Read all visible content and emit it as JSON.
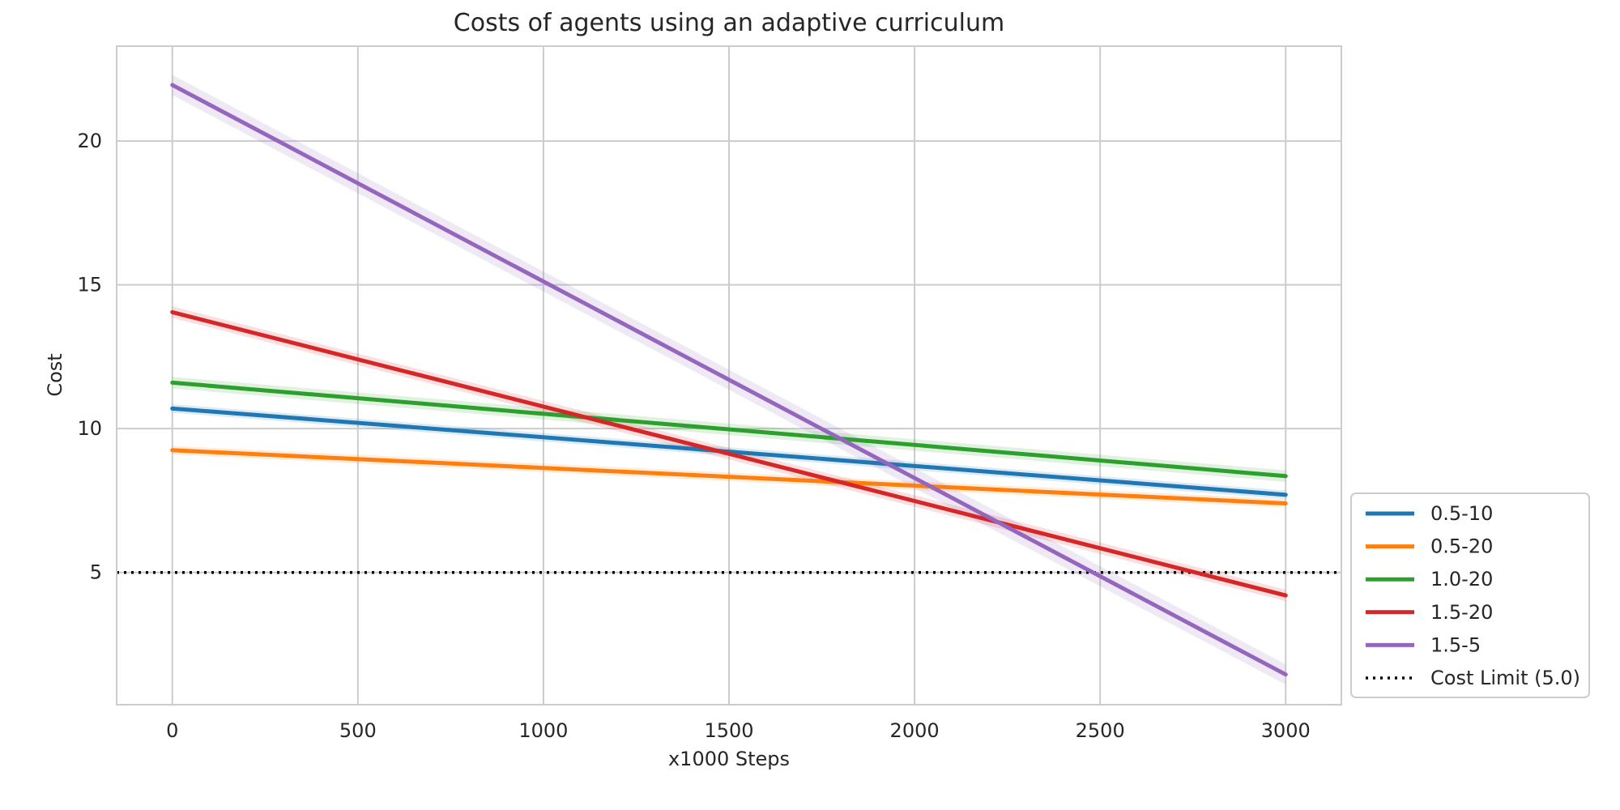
{
  "chart_data": {
    "type": "line",
    "title": "Costs of agents using an adaptive curriculum",
    "xlabel": "x1000 Steps",
    "ylabel": "Cost",
    "xlim": [
      -150,
      3150
    ],
    "ylim": [
      0.4,
      23.3
    ],
    "xticks": [
      0,
      500,
      1000,
      1500,
      2000,
      2500,
      3000
    ],
    "yticks": [
      5,
      10,
      15,
      20
    ],
    "grid": true,
    "legend_position": "lower right, outside plot",
    "series": [
      {
        "name": "0.5-10",
        "color": "#1f77b4",
        "x": [
          0,
          3000
        ],
        "y": [
          10.7,
          7.7
        ],
        "band": 0.15
      },
      {
        "name": "0.5-20",
        "color": "#ff7f0e",
        "x": [
          0,
          3000
        ],
        "y": [
          9.25,
          7.4
        ],
        "band": 0.15
      },
      {
        "name": "1.0-20",
        "color": "#2ca02c",
        "x": [
          0,
          3000
        ],
        "y": [
          11.6,
          8.35
        ],
        "band": 0.2
      },
      {
        "name": "1.5-20",
        "color": "#d62728",
        "x": [
          0,
          3000
        ],
        "y": [
          14.05,
          4.2
        ],
        "band": 0.2
      },
      {
        "name": "1.5-5",
        "color": "#9467bd",
        "x": [
          0,
          3000
        ],
        "y": [
          21.95,
          1.45
        ],
        "band": 0.35
      }
    ],
    "reference_line": {
      "name": "Cost Limit (5.0)",
      "y": 5.0,
      "color": "#000000",
      "style": "dotted"
    }
  }
}
